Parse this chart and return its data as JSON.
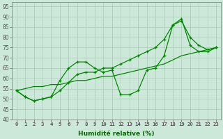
{
  "x": [
    0,
    1,
    2,
    3,
    4,
    5,
    6,
    7,
    8,
    9,
    10,
    11,
    12,
    13,
    14,
    15,
    16,
    17,
    18,
    19,
    20,
    21,
    22,
    23
  ],
  "line1": [
    54,
    51,
    49,
    50,
    51,
    59,
    65,
    68,
    68,
    65,
    63,
    64,
    52,
    52,
    54,
    64,
    65,
    71,
    86,
    89,
    76,
    73,
    73,
    75
  ],
  "line2": [
    54,
    51,
    49,
    50,
    51,
    54,
    58,
    62,
    63,
    63,
    65,
    65,
    67,
    69,
    71,
    73,
    75,
    79,
    86,
    88,
    80,
    76,
    74,
    75
  ],
  "line3": [
    54,
    55,
    56,
    56,
    57,
    57,
    58,
    59,
    59,
    60,
    61,
    61,
    62,
    63,
    64,
    65,
    66,
    67,
    69,
    71,
    72,
    73,
    74,
    75
  ],
  "bg_color": "#cce8d8",
  "grid_color": "#aacabb",
  "line_color": "#008800",
  "xlabel": "Humidité relative (%)",
  "ylim": [
    40,
    97
  ],
  "xlim": [
    -0.5,
    23.5
  ],
  "yticks": [
    40,
    45,
    50,
    55,
    60,
    65,
    70,
    75,
    80,
    85,
    90,
    95
  ],
  "xticks": [
    0,
    1,
    2,
    3,
    4,
    5,
    6,
    7,
    8,
    9,
    10,
    11,
    12,
    13,
    14,
    15,
    16,
    17,
    18,
    19,
    20,
    21,
    22,
    23
  ]
}
